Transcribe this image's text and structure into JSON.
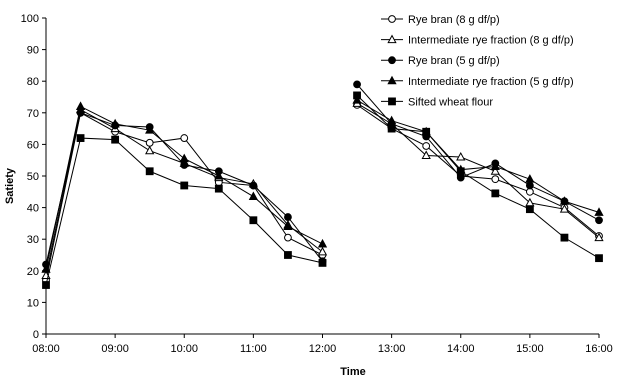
{
  "chart_data": {
    "type": "line",
    "title": "",
    "xlabel": "Time",
    "ylabel": "Satiety",
    "x_ticks": [
      "08:00",
      "09:00",
      "10:00",
      "11:00",
      "12:00",
      "13:00",
      "14:00",
      "15:00",
      "16:00"
    ],
    "xlim_hours": [
      8,
      16
    ],
    "ylim": [
      0,
      100
    ],
    "y_ticks": [
      0,
      10,
      20,
      30,
      40,
      50,
      60,
      70,
      80,
      90,
      100
    ],
    "grid": false,
    "legend_position": "top-right",
    "series": [
      {
        "name": "Rye bran (8 g df/p)",
        "marker": "circle-open",
        "segments": [
          {
            "x": [
              8.0,
              8.5,
              9.0,
              9.5,
              10.0,
              10.5,
              11.0,
              11.5,
              12.0
            ],
            "y": [
              17,
              70,
              64,
              60.5,
              62,
              48,
              47,
              30.5,
              25
            ]
          },
          {
            "x": [
              12.5,
              13.0,
              13.5,
              14.0,
              14.5,
              15.0,
              15.5,
              16.0
            ],
            "y": [
              72.5,
              65,
              59.5,
              50,
              49,
              45,
              40,
              31
            ]
          }
        ]
      },
      {
        "name": "Intermediate rye fraction (8 g df/p)",
        "marker": "triangle-open",
        "segments": [
          {
            "x": [
              8.0,
              8.5,
              9.0,
              9.5,
              10.0,
              10.5,
              11.0,
              11.5,
              12.0
            ],
            "y": [
              18.5,
              71,
              65,
              58,
              54,
              49.5,
              47.5,
              34.5,
              26
            ]
          },
          {
            "x": [
              12.5,
              13.0,
              13.5,
              14.0,
              14.5,
              15.0,
              15.5,
              16.0
            ],
            "y": [
              73,
              66.5,
              56.5,
              56,
              51.5,
              41.5,
              39.5,
              30.5
            ]
          }
        ]
      },
      {
        "name": "Rye bran (5 g df/p)",
        "marker": "circle-filled",
        "segments": [
          {
            "x": [
              8.0,
              8.5,
              9.0,
              9.5,
              10.0,
              10.5,
              11.0,
              11.5,
              12.0
            ],
            "y": [
              22,
              70,
              66,
              65.5,
              53.5,
              51.5,
              47,
              37,
              23
            ]
          },
          {
            "x": [
              12.5,
              13.0,
              13.5,
              14.0,
              14.5,
              15.0,
              15.5,
              16.0
            ],
            "y": [
              79,
              66.5,
              62.5,
              49.5,
              54,
              47,
              42,
              36
            ]
          }
        ]
      },
      {
        "name": "Intermediate rye fraction (5 g df/p)",
        "marker": "triangle-filled",
        "segments": [
          {
            "x": [
              8.0,
              8.5,
              9.0,
              9.5,
              10.0,
              10.5,
              11.0,
              11.5,
              12.0
            ],
            "y": [
              20.5,
              72,
              66.5,
              64.5,
              55.5,
              50,
              43.5,
              34,
              28.5
            ]
          },
          {
            "x": [
              12.5,
              13.0,
              13.5,
              14.0,
              14.5,
              15.0,
              15.5,
              16.0
            ],
            "y": [
              74,
              67.5,
              64,
              52,
              53,
              49,
              42,
              38.5
            ]
          }
        ]
      },
      {
        "name": "Sifted wheat flour",
        "marker": "square-filled",
        "segments": [
          {
            "x": [
              8.0,
              8.5,
              9.0,
              9.5,
              10.0,
              10.5,
              11.0,
              11.5,
              12.0
            ],
            "y": [
              15.5,
              62,
              61.5,
              51.5,
              47,
              46,
              36,
              25,
              22.5
            ]
          },
          {
            "x": [
              12.5,
              13.0,
              13.5,
              14.0,
              14.5,
              15.0,
              15.5,
              16.0
            ],
            "y": [
              75.5,
              65,
              64,
              51.5,
              44.5,
              39.5,
              30.5,
              24
            ]
          }
        ]
      }
    ]
  }
}
